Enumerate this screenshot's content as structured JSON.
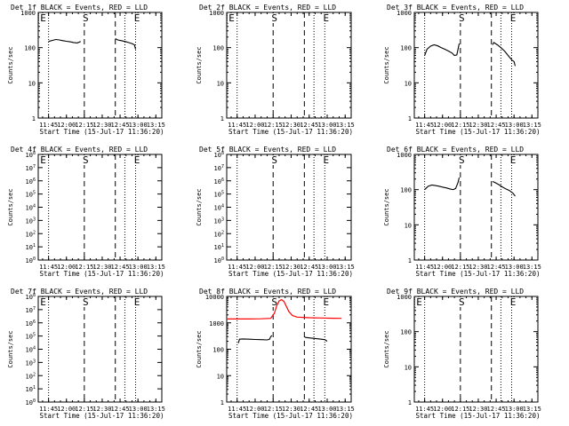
{
  "figure": {
    "xlabel": "Start Time (15-Jul-17 11:36:20)",
    "ylabel": "Counts/sec",
    "x_tick_labels": [
      "11:45",
      "12:00",
      "12:15",
      "12:30",
      "12:45",
      "13:00",
      "13:15"
    ]
  },
  "colors": {
    "events": "#000000",
    "lld": "#ff0000",
    "background": "#ffffff"
  },
  "chart_data": [
    {
      "type": "line",
      "title": "Det 1f BLACK = Events, RED = LLD",
      "yscale": "log",
      "ylim": [
        1,
        1000
      ],
      "y_tick_labels": [
        "1",
        "10",
        "100",
        "1000"
      ],
      "xlim": [
        "11:36:20",
        "13:20:00"
      ],
      "markers": [
        {
          "label": "E",
          "time": "11:36:20"
        },
        {
          "label": "S",
          "time": "12:15"
        },
        {
          "label": "E",
          "time": "12:58"
        }
      ],
      "dotted_lines": [
        "11:45",
        "12:49",
        "12:58"
      ],
      "dashed_lines": [
        "12:15",
        "12:41"
      ],
      "series": [
        {
          "color": "#000000",
          "points": [
            [
              "11:45",
              150
            ],
            [
              "11:48",
              160
            ],
            [
              "11:51",
              170
            ],
            [
              "11:54",
              165
            ],
            [
              "11:57",
              158
            ],
            [
              "12:00",
              152
            ],
            [
              "12:03",
              146
            ],
            [
              "12:06",
              140
            ],
            [
              "12:09",
              136
            ],
            [
              "12:12",
              150
            ]
          ]
        },
        {
          "color": "#000000",
          "points": [
            [
              "12:41",
              180
            ],
            [
              "12:43",
              165
            ],
            [
              "12:46",
              158
            ],
            [
              "12:49",
              150
            ],
            [
              "12:52",
              140
            ],
            [
              "12:55",
              130
            ],
            [
              "12:57",
              120
            ],
            [
              "12:58",
              90
            ]
          ]
        }
      ]
    },
    {
      "type": "line",
      "title": "Det 2f BLACK = Events, RED = LLD",
      "yscale": "log",
      "ylim": [
        1,
        1000
      ],
      "y_tick_labels": [
        "1",
        "10",
        "100",
        "1000"
      ],
      "xlim": [
        "11:36:20",
        "13:20:00"
      ],
      "markers": [
        {
          "label": "E",
          "time": "11:36:20"
        },
        {
          "label": "S",
          "time": "12:15"
        },
        {
          "label": "E",
          "time": "12:58"
        }
      ],
      "dotted_lines": [
        "11:45",
        "12:49",
        "12:58"
      ],
      "dashed_lines": [
        "12:15",
        "12:41"
      ],
      "series": []
    },
    {
      "type": "line",
      "title": "Det 3f BLACK = Events, RED = LLD",
      "yscale": "log",
      "ylim": [
        1,
        1000
      ],
      "y_tick_labels": [
        "1",
        "10",
        "100",
        "1000"
      ],
      "xlim": [
        "11:36:20",
        "13:20:00"
      ],
      "markers": [
        {
          "label": "S",
          "time": "12:15"
        },
        {
          "label": "E",
          "time": "12:58"
        }
      ],
      "dotted_lines": [
        "11:45",
        "12:49",
        "12:58"
      ],
      "dashed_lines": [
        "12:15",
        "12:41"
      ],
      "series": [
        {
          "color": "#000000",
          "points": [
            [
              "11:45",
              60
            ],
            [
              "11:47",
              90
            ],
            [
              "11:50",
              110
            ],
            [
              "11:53",
              120
            ],
            [
              "11:56",
              112
            ],
            [
              "11:59",
              100
            ],
            [
              "12:02",
              90
            ],
            [
              "12:05",
              80
            ],
            [
              "12:08",
              70
            ],
            [
              "12:10",
              60
            ],
            [
              "12:12",
              62
            ],
            [
              "12:13",
              90
            ],
            [
              "12:14",
              130
            ]
          ]
        },
        {
          "color": "#000000",
          "points": [
            [
              "12:42",
              120
            ],
            [
              "12:43",
              140
            ],
            [
              "12:46",
              120
            ],
            [
              "12:49",
              100
            ],
            [
              "12:52",
              80
            ],
            [
              "12:55",
              60
            ],
            [
              "12:58",
              45
            ],
            [
              "13:00",
              40
            ],
            [
              "13:01",
              30
            ]
          ]
        }
      ]
    },
    {
      "type": "line",
      "title": "Det 4f BLACK = Events, RED = LLD",
      "yscale": "log",
      "ylim": [
        1,
        100000000
      ],
      "y_tick_labels": [
        "10^0",
        "10^1",
        "10^2",
        "10^3",
        "10^4",
        "10^5",
        "10^6",
        "10^7",
        "10^8"
      ],
      "xlim": [
        "11:36:20",
        "13:20:00"
      ],
      "markers": [
        {
          "label": "E",
          "time": "11:36:20"
        },
        {
          "label": "S",
          "time": "12:15"
        },
        {
          "label": "E",
          "time": "12:58"
        }
      ],
      "dotted_lines": [
        "11:45",
        "12:49",
        "12:58"
      ],
      "dashed_lines": [
        "12:15",
        "12:41"
      ],
      "series": []
    },
    {
      "type": "line",
      "title": "Det 5f BLACK = Events, RED = LLD",
      "yscale": "log",
      "ylim": [
        1,
        100000000
      ],
      "y_tick_labels": [
        "10^0",
        "10^1",
        "10^2",
        "10^3",
        "10^4",
        "10^5",
        "10^6",
        "10^7",
        "10^8"
      ],
      "xlim": [
        "11:36:20",
        "13:20:00"
      ],
      "markers": [
        {
          "label": "S",
          "time": "12:15"
        },
        {
          "label": "E",
          "time": "12:58"
        }
      ],
      "dotted_lines": [
        "11:45",
        "12:49",
        "12:58"
      ],
      "dashed_lines": [
        "12:15",
        "12:41"
      ],
      "series": []
    },
    {
      "type": "line",
      "title": "Det 6f BLACK = Events, RED = LLD",
      "yscale": "log",
      "ylim": [
        1,
        1000
      ],
      "y_tick_labels": [
        "1",
        "10",
        "100",
        "1000"
      ],
      "xlim": [
        "11:36:20",
        "13:20:00"
      ],
      "markers": [
        {
          "label": "S",
          "time": "12:15"
        },
        {
          "label": "E",
          "time": "12:58"
        }
      ],
      "dotted_lines": [
        "11:45",
        "12:49",
        "12:58"
      ],
      "dashed_lines": [
        "12:15",
        "12:41"
      ],
      "series": [
        {
          "color": "#000000",
          "points": [
            [
              "11:45",
              100
            ],
            [
              "11:48",
              125
            ],
            [
              "11:51",
              135
            ],
            [
              "11:54",
              130
            ],
            [
              "11:57",
              125
            ],
            [
              "12:00",
              118
            ],
            [
              "12:03",
              112
            ],
            [
              "12:06",
              105
            ],
            [
              "12:09",
              100
            ],
            [
              "12:11",
              108
            ],
            [
              "12:13",
              160
            ],
            [
              "12:14",
              220
            ]
          ]
        },
        {
          "color": "#000000",
          "points": [
            [
              "12:42",
              170
            ],
            [
              "12:44",
              160
            ],
            [
              "12:47",
              140
            ],
            [
              "12:50",
              120
            ],
            [
              "12:53",
              105
            ],
            [
              "12:56",
              95
            ],
            [
              "12:59",
              80
            ],
            [
              "13:01",
              65
            ]
          ]
        }
      ]
    },
    {
      "type": "line",
      "title": "Det 7f BLACK = Events, RED = LLD",
      "yscale": "log",
      "ylim": [
        1,
        100000000
      ],
      "y_tick_labels": [
        "10^0",
        "10^1",
        "10^2",
        "10^3",
        "10^4",
        "10^5",
        "10^6",
        "10^7",
        "10^8"
      ],
      "xlim": [
        "11:36:20",
        "13:20:00"
      ],
      "markers": [
        {
          "label": "E",
          "time": "11:36:20"
        },
        {
          "label": "S",
          "time": "12:15"
        },
        {
          "label": "E",
          "time": "12:58"
        }
      ],
      "dotted_lines": [
        "11:45",
        "12:49",
        "12:58"
      ],
      "dashed_lines": [
        "12:15",
        "12:41"
      ],
      "series": []
    },
    {
      "type": "line",
      "title": "Det 8f BLACK = Events, RED = LLD",
      "yscale": "log",
      "ylim": [
        1,
        10000
      ],
      "y_tick_labels": [
        "1",
        "10",
        "100",
        "1000",
        "10000"
      ],
      "xlim": [
        "11:36:20",
        "13:20:00"
      ],
      "markers": [
        {
          "label": "S",
          "time": "12:15"
        },
        {
          "label": "E",
          "time": "12:58"
        }
      ],
      "dotted_lines": [
        "11:45",
        "12:49",
        "12:58"
      ],
      "dashed_lines": [
        "12:15",
        "12:41"
      ],
      "series": [
        {
          "color": "#ff0000",
          "points": [
            [
              "11:36:20",
              1400
            ],
            [
              "11:45",
              1400
            ],
            [
              "11:55",
              1400
            ],
            [
              "12:05",
              1420
            ],
            [
              "12:13",
              1480
            ],
            [
              "12:16",
              2300
            ],
            [
              "12:18",
              4500
            ],
            [
              "12:20",
              6800
            ],
            [
              "12:22",
              7500
            ],
            [
              "12:24",
              6500
            ],
            [
              "12:26",
              4200
            ],
            [
              "12:28",
              2700
            ],
            [
              "12:31",
              1900
            ],
            [
              "12:35",
              1650
            ],
            [
              "12:45",
              1560
            ],
            [
              "12:55",
              1520
            ],
            [
              "13:05",
              1490
            ],
            [
              "13:12",
              1480
            ]
          ]
        },
        {
          "color": "#000000",
          "points": [
            [
              "11:46",
              170
            ],
            [
              "11:47",
              240
            ],
            [
              "11:50",
              245
            ],
            [
              "11:55",
              240
            ],
            [
              "12:00",
              235
            ],
            [
              "12:05",
              230
            ],
            [
              "12:10",
              225
            ],
            [
              "12:12",
              240
            ],
            [
              "12:13",
              300
            ],
            [
              "12:14",
              330
            ]
          ]
        },
        {
          "color": "#000000",
          "points": [
            [
              "12:41",
              300
            ],
            [
              "12:42",
              280
            ],
            [
              "12:45",
              270
            ],
            [
              "12:50",
              255
            ],
            [
              "12:55",
              240
            ],
            [
              "12:58",
              230
            ],
            [
              "13:00",
              200
            ]
          ]
        }
      ]
    },
    {
      "type": "line",
      "title": "Det 9f BLACK = Events, RED = LLD",
      "yscale": "log",
      "ylim": [
        1,
        1000
      ],
      "y_tick_labels": [
        "1",
        "10",
        "100",
        "1000"
      ],
      "xlim": [
        "11:36:20",
        "13:20:00"
      ],
      "markers": [
        {
          "label": "E",
          "time": "11:36:20"
        },
        {
          "label": "S",
          "time": "12:15"
        },
        {
          "label": "E",
          "time": "12:58"
        }
      ],
      "dotted_lines": [
        "11:45",
        "12:49",
        "12:58"
      ],
      "dashed_lines": [
        "12:15",
        "12:41"
      ],
      "series": []
    }
  ]
}
